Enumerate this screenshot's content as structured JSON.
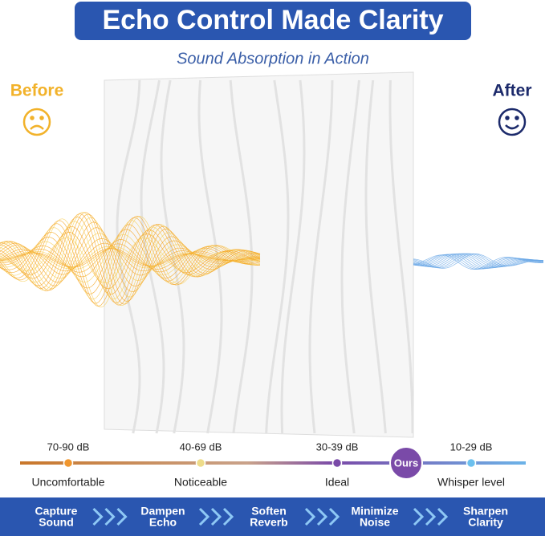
{
  "header": {
    "title": "Echo Control Made Clarity",
    "subtitle": "Sound Absorption in Action"
  },
  "before": "Before",
  "after": "After",
  "scale": {
    "badge": "Ours",
    "items": [
      {
        "level": "70-90 dB",
        "label": "Uncomfortable"
      },
      {
        "level": "40-69 dB",
        "label": "Noticeable"
      },
      {
        "level": "30-39 dB",
        "label": "Ideal"
      },
      {
        "level": "10-29 dB",
        "label": "Whisper level"
      }
    ]
  },
  "steps": [
    [
      "Capture",
      "Sound"
    ],
    [
      "Dampen",
      "Echo"
    ],
    [
      "Soften",
      "Reverb"
    ],
    [
      "Minimize",
      "Noise"
    ],
    [
      "Sharpen",
      "Clarity"
    ]
  ]
}
